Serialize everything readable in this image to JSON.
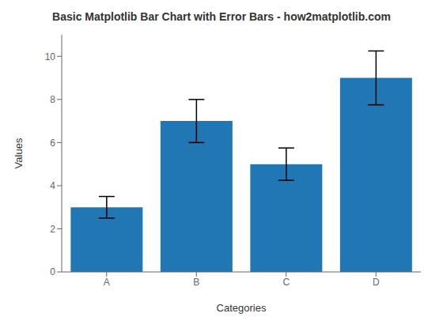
{
  "chart_data": {
    "type": "bar",
    "title": "Basic Matplotlib Bar Chart with Error Bars - how2matplotlib.com",
    "xlabel": "Categories",
    "ylabel": "Values",
    "categories": [
      "A",
      "B",
      "C",
      "D"
    ],
    "values": [
      3,
      7,
      5,
      9
    ],
    "errors": [
      0.5,
      1.0,
      0.75,
      1.25
    ],
    "color": "#2077B4",
    "ylim": [
      0,
      11
    ],
    "yticks": [
      0,
      2,
      4,
      6,
      8,
      10
    ],
    "grid": false
  }
}
